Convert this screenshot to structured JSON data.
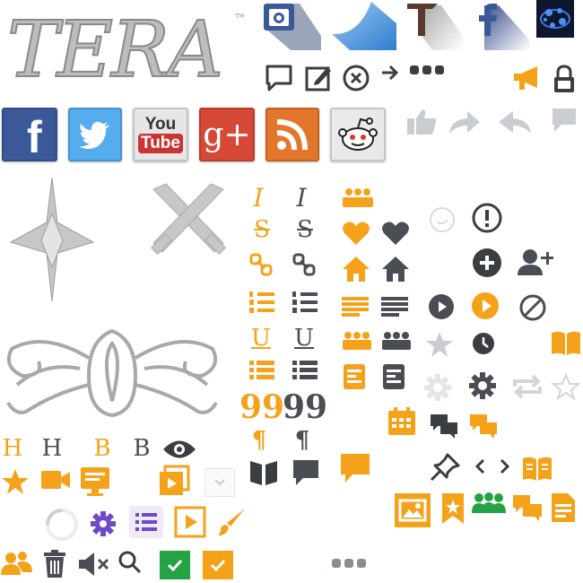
{
  "colors": {
    "orange": "#F5A21B",
    "dark": "#4A4E54",
    "gray": "#C9CDD1",
    "purple": "#6E49C9",
    "green": "#25A244",
    "facebook": "#3B5998",
    "twitter": "#55ACEE",
    "youtube": "#CC3333",
    "googleplus": "#D64937",
    "rss": "#E2762A"
  },
  "logo": {
    "text": "TERA",
    "tm": "TM"
  },
  "social": {
    "facebook": "f",
    "youtube_top": "You",
    "youtube_bottom": "Tube",
    "googleplus": "g+"
  },
  "format_glyphs": {
    "italic": "I",
    "strike": "S",
    "underline": "U",
    "heading": "H",
    "bold": "B",
    "quote": "99",
    "pilcrow": "¶"
  },
  "icons": [
    "instagram-icon",
    "wave-icon",
    "tera-t-icon",
    "facebook-f-icon",
    "galaxy-icon",
    "comment-icon",
    "edit-icon",
    "close-circle-icon",
    "arrow-right-icon",
    "ellipsis-icon",
    "megaphone-icon",
    "lock-icon",
    "like-icon",
    "share-icon",
    "reply-icon",
    "chat-icon",
    "facebook-icon",
    "twitter-icon",
    "youtube-icon",
    "google-plus-icon",
    "rss-icon",
    "reddit-icon",
    "emblem-icon",
    "crossed-swords-icon",
    "ornament-icon",
    "group-icon",
    "heart-icon",
    "home-icon",
    "align-icon",
    "book-icon",
    "star-icon",
    "clock-icon",
    "gear-icon",
    "refresh-icon",
    "speech-bubble-icon",
    "info-icon",
    "add-circle-icon",
    "add-user-icon",
    "play-circle-icon",
    "ban-icon",
    "calendar-icon",
    "pin-icon",
    "chevron-left-icon",
    "chevron-right-icon",
    "image-icon",
    "bookmark-star-icon",
    "document-icon",
    "video-camera-icon",
    "monitor-icon",
    "video-stack-icon",
    "spinner-icon",
    "list-icon",
    "play-icon",
    "brush-icon",
    "users-icon",
    "trash-icon",
    "mute-icon",
    "search-icon",
    "checkbox-icon",
    "eye-icon"
  ]
}
